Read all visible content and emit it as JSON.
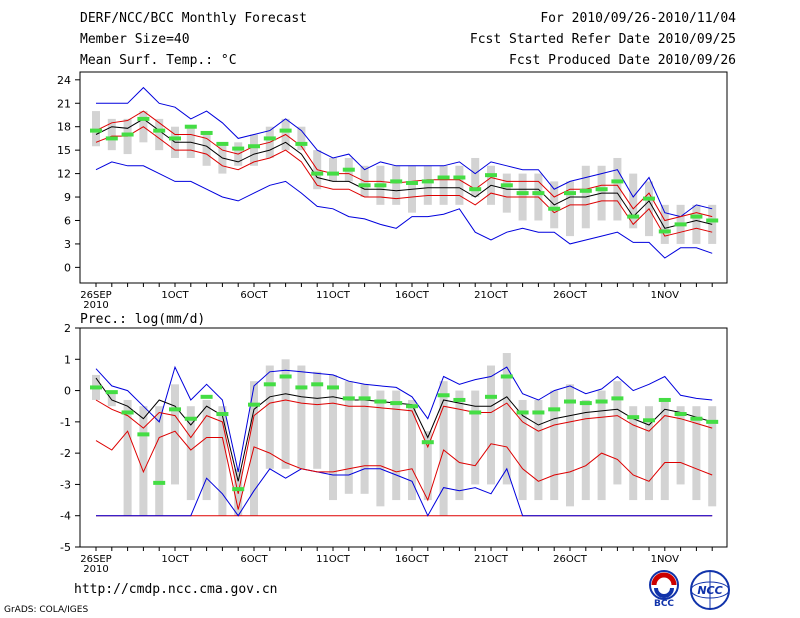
{
  "header": {
    "title": "DERF/NCC/BCC Monthly Forecast",
    "member_size": "Member Size=40",
    "variable1": "Mean Surf. Temp.: °C",
    "period": "For 2010/09/26-2010/11/04",
    "fcst_started": "Fcst Started Refer Date 2010/09/25",
    "fcst_produced": "Fcst Produced Date 2010/09/26"
  },
  "footer": {
    "url": "http://cmdp.ncc.cma.gov.cn",
    "grads": "GrADS: COLA/IGES",
    "logo_bcc": "BCC",
    "logo_ncc": "NCC"
  },
  "colors": {
    "box": "#d3d3d3",
    "median": "#44dd44",
    "mean": "#000000",
    "band": "#dd0000",
    "envelope": "#0000dd",
    "floor": "#dd0000"
  },
  "chart_data": [
    {
      "type": "box-ensemble",
      "title": "Mean Surf. Temp.: °C",
      "ylim": [
        -2,
        25
      ],
      "yticks": [
        0,
        3,
        6,
        9,
        12,
        15,
        18,
        21,
        24
      ],
      "days": 40,
      "xticks": [
        {
          "day": 0,
          "label": "26SEP",
          "sub": "2010"
        },
        {
          "day": 5,
          "label": "1OCT"
        },
        {
          "day": 10,
          "label": "6OCT"
        },
        {
          "day": 15,
          "label": "11OCT"
        },
        {
          "day": 20,
          "label": "16OCT"
        },
        {
          "day": 25,
          "label": "21OCT"
        },
        {
          "day": 30,
          "label": "26OCT"
        },
        {
          "day": 36,
          "label": "1NOV"
        }
      ],
      "box_low": [
        15.5,
        15,
        14.5,
        16,
        15,
        14,
        14,
        13,
        12,
        13,
        13,
        14,
        15,
        15,
        10,
        11,
        11,
        9,
        8,
        8,
        7,
        8,
        8,
        8,
        9,
        8,
        7,
        6,
        6,
        5,
        4,
        5,
        6,
        6,
        5,
        4,
        3,
        3,
        3,
        3
      ],
      "box_high": [
        20,
        19,
        19,
        20,
        19,
        18,
        18,
        17,
        16,
        16,
        17,
        18,
        19,
        18,
        15,
        14,
        14,
        13,
        13,
        13,
        13,
        13,
        13,
        13,
        14,
        13,
        12,
        12,
        12,
        11,
        11,
        13,
        13,
        14,
        12,
        11,
        8,
        8,
        8,
        8
      ],
      "median": [
        17.5,
        16.5,
        17,
        19,
        17.5,
        16.5,
        18,
        17.2,
        15.8,
        15.2,
        15.5,
        16.5,
        17.5,
        15.8,
        12,
        12,
        12.5,
        10.5,
        10.5,
        11,
        10.8,
        11,
        11.5,
        11.5,
        10,
        11.8,
        10.5,
        9.5,
        9.5,
        7.5,
        9.5,
        9.8,
        10,
        11,
        6.5,
        8.8,
        4.6,
        5.5,
        6.5,
        6
      ],
      "mean": [
        17,
        18,
        17.8,
        19,
        17.5,
        16,
        16,
        15.5,
        14,
        13.5,
        14.5,
        15,
        16,
        14.5,
        11.5,
        11,
        11,
        10,
        10,
        9.8,
        10,
        10.2,
        10.2,
        10.2,
        9,
        10.5,
        10,
        10,
        10,
        8,
        9,
        9,
        9.5,
        9.5,
        6.5,
        8.5,
        5,
        5.5,
        6,
        5.5
      ],
      "band_high": [
        17.5,
        18.5,
        18.8,
        20,
        18.5,
        17,
        17,
        16.5,
        15,
        14.5,
        15.5,
        16,
        17,
        15.5,
        12.5,
        12,
        12,
        11,
        11,
        10.8,
        11,
        11.2,
        11.2,
        11.2,
        10,
        11.5,
        11,
        11,
        11,
        9,
        10,
        10,
        10.5,
        10.5,
        7.5,
        9.5,
        6,
        6.5,
        7,
        6.5
      ],
      "band_low": [
        16,
        16.8,
        16.8,
        18,
        16.5,
        15,
        15,
        14.5,
        13,
        12.5,
        13.5,
        14,
        15,
        13.5,
        10.5,
        10,
        10,
        9,
        9,
        8.8,
        9,
        9.2,
        9.2,
        9.2,
        8,
        9.5,
        9,
        9,
        9,
        7,
        8,
        8,
        8.5,
        8.5,
        5.5,
        7.5,
        4,
        4.5,
        5,
        4.5
      ],
      "env_high": [
        21,
        21,
        21,
        23,
        21,
        20.5,
        19,
        20,
        18.5,
        16.5,
        17,
        17.5,
        19,
        17.5,
        15,
        14,
        14.5,
        12.5,
        13.5,
        13,
        13,
        13,
        13,
        13.5,
        12,
        13.5,
        13,
        12.5,
        12.5,
        10,
        11,
        11.5,
        12,
        12.5,
        9,
        11.5,
        7,
        6.5,
        8,
        7.5
      ],
      "env_low": [
        12.5,
        13.5,
        13,
        13,
        12,
        11,
        11,
        10,
        9,
        8.5,
        9.5,
        10.5,
        11,
        9.5,
        7.8,
        7.5,
        6.5,
        6.2,
        5.5,
        5,
        6.5,
        6.5,
        6.8,
        7.5,
        4.5,
        3.5,
        4.5,
        5,
        4.5,
        4.5,
        3,
        3.5,
        4,
        4.5,
        3.2,
        3.2,
        1.2,
        2.5,
        2.5,
        1.8
      ]
    },
    {
      "type": "box-ensemble",
      "title": "Prec.: log(mm/d)",
      "ylim": [
        -5,
        2
      ],
      "yticks": [
        -5,
        -4,
        -3,
        -2,
        -1,
        0,
        1,
        2
      ],
      "days": 40,
      "floor": -4,
      "xticks": [
        {
          "day": 0,
          "label": "26SEP",
          "sub": "2010"
        },
        {
          "day": 5,
          "label": "1OCT"
        },
        {
          "day": 10,
          "label": "6OCT"
        },
        {
          "day": 15,
          "label": "11OCT"
        },
        {
          "day": 20,
          "label": "16OCT"
        },
        {
          "day": 25,
          "label": "21OCT"
        },
        {
          "day": 30,
          "label": "26OCT"
        },
        {
          "day": 36,
          "label": "1NOV"
        }
      ],
      "box_low": [
        -0.3,
        -0.5,
        -4,
        -4,
        -4,
        -3,
        -3.5,
        -3.5,
        -4,
        -4,
        -4,
        -2.5,
        -2.5,
        -2.5,
        -2.5,
        -3.5,
        -3.3,
        -3.3,
        -3.7,
        -3.5,
        -3.5,
        -3.5,
        -4,
        -3.5,
        -3,
        -3,
        -3,
        -3.5,
        -3.5,
        -3.5,
        -3.7,
        -3.5,
        -3.5,
        -3,
        -3.5,
        -3.5,
        -3.5,
        -3,
        -3.5,
        -3.7
      ],
      "box_high": [
        0.5,
        0,
        -0.3,
        -0.5,
        -0.5,
        0.2,
        -0.5,
        -0.3,
        -0.5,
        -2.5,
        0.3,
        0.8,
        1,
        0.8,
        0.6,
        0.5,
        0.3,
        0.2,
        0,
        0,
        -0.3,
        -1.3,
        0.3,
        0,
        0,
        0.8,
        1.2,
        -0.3,
        -0.3,
        0,
        0.2,
        -0.3,
        0,
        0.3,
        -0.5,
        -0.5,
        -0.3,
        -0.5,
        -0.5,
        -0.5
      ],
      "median": [
        0.1,
        -0.05,
        -0.7,
        -1.4,
        -2.95,
        -0.6,
        -0.9,
        -0.2,
        -0.75,
        -3.15,
        -0.45,
        0.2,
        0.45,
        0.1,
        0.2,
        0.1,
        -0.25,
        -0.25,
        -0.35,
        -0.4,
        -0.5,
        -1.65,
        -0.15,
        -0.3,
        -0.7,
        -0.2,
        0.45,
        -0.7,
        -0.7,
        -0.6,
        -0.35,
        -0.4,
        -0.35,
        -0.25,
        -0.85,
        -0.95,
        -0.3,
        -0.75,
        -0.9,
        -1.0
      ],
      "mean": [
        0.4,
        -0.3,
        -0.5,
        -0.9,
        -0.3,
        -0.5,
        -1.1,
        -0.5,
        -0.8,
        -2.9,
        -0.6,
        -0.2,
        -0.1,
        -0.2,
        -0.25,
        -0.2,
        -0.3,
        -0.3,
        -0.35,
        -0.4,
        -0.45,
        -1.5,
        -0.3,
        -0.4,
        -0.5,
        -0.5,
        -0.2,
        -0.8,
        -1.1,
        -0.9,
        -0.8,
        -0.7,
        -0.65,
        -0.6,
        -0.9,
        -1.1,
        -0.6,
        -0.7,
        -0.85,
        -1.0
      ],
      "band_high": [
        -0.3,
        -0.6,
        -0.8,
        -1.2,
        -0.7,
        -0.8,
        -1.5,
        -0.8,
        -1.0,
        -3.3,
        -0.8,
        -0.4,
        -0.3,
        -0.4,
        -0.45,
        -0.4,
        -0.5,
        -0.5,
        -0.55,
        -0.6,
        -0.65,
        -1.8,
        -0.5,
        -0.6,
        -0.7,
        -0.7,
        -0.4,
        -1.0,
        -1.3,
        -1.1,
        -1.0,
        -0.9,
        -0.85,
        -0.8,
        -1.1,
        -1.3,
        -0.8,
        -0.9,
        -1.05,
        -1.2
      ],
      "band_low": [
        -1.6,
        -1.9,
        -1.3,
        -2.6,
        -1.5,
        -1.3,
        -1.9,
        -1.5,
        -1.5,
        -3.8,
        -1.8,
        -2.0,
        -2.3,
        -2.5,
        -2.6,
        -2.6,
        -2.5,
        -2.4,
        -2.4,
        -2.6,
        -2.5,
        -3.5,
        -1.9,
        -2.3,
        -2.4,
        -1.7,
        -1.8,
        -2.5,
        -2.9,
        -2.7,
        -2.6,
        -2.4,
        -2.0,
        -2.2,
        -2.7,
        -2.9,
        -2.3,
        -2.3,
        -2.5,
        -2.7
      ],
      "env_high": [
        0.7,
        0.15,
        0,
        -0.5,
        -1.0,
        0.75,
        -0.3,
        0.2,
        -0.3,
        -2.6,
        0.15,
        0.6,
        0.65,
        0.6,
        0.55,
        0.5,
        0.3,
        0.2,
        0.15,
        0.1,
        -0.2,
        -0.9,
        0.45,
        0.2,
        0.35,
        0.45,
        0.75,
        -0.1,
        -0.3,
        0.0,
        0.15,
        -0.1,
        0.05,
        0.45,
        0.0,
        0.2,
        0.45,
        -0.15,
        -0.25,
        -0.3
      ],
      "env_low": [
        -4,
        -4,
        -4,
        -4,
        -4,
        -4,
        -4,
        -2.8,
        -3.3,
        -4,
        -3.2,
        -2.5,
        -2.8,
        -2.5,
        -2.6,
        -2.7,
        -2.7,
        -2.5,
        -2.5,
        -2.7,
        -2.9,
        -4,
        -3.1,
        -3.2,
        -3.1,
        -3.3,
        -2.5,
        -4,
        -4,
        -4,
        -4,
        -4,
        -4,
        -4,
        -4,
        -4,
        -4,
        -4,
        -4,
        -4
      ]
    }
  ]
}
